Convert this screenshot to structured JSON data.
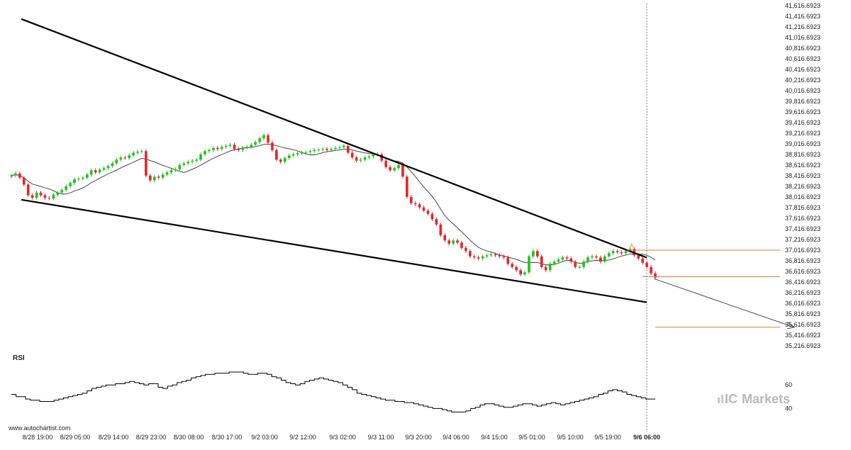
{
  "watermark": "www.autochartist.com",
  "brand": {
    "prefix": "IC",
    "name": "Markets"
  },
  "rsi_label": "RSI",
  "colors": {
    "up": "#21c21b",
    "down": "#e3262b",
    "line": "#000000",
    "level": "#e07b3c",
    "ma": "#333333"
  },
  "chart_data": [
    {
      "type": "candlestick",
      "title": "",
      "xlabel": "",
      "ylabel": "",
      "y_ticks": [
        "41,616.6923",
        "41,416.6923",
        "41,216.6923",
        "41,016.6923",
        "40,816.6923",
        "40,616.6923",
        "40,416.6923",
        "40,216.6923",
        "40,016.6923",
        "39,816.6923",
        "39,616.6923",
        "39,416.6923",
        "39,216.6923",
        "39,016.6923",
        "38,816.6923",
        "38,616.6923",
        "38,416.6923",
        "38,216.6923",
        "38,016.6923",
        "37,816.6923",
        "37,616.6923",
        "37,416.6923",
        "37,216.6923",
        "37,016.6923",
        "36,816.6923",
        "36,616.6923",
        "36,416.6923",
        "36,216.6923",
        "36,016.6923",
        "35,816.6923",
        "35,616.6923",
        "35,416.6923",
        "35,216.6923"
      ],
      "ylim": [
        35216.6923,
        41616.6923
      ],
      "x_ticks": [
        "8/28 19:00",
        "8/29 05:00",
        "8/29 14:00",
        "8/29 23:00",
        "8/30 08:00",
        "8/30 17:00",
        "9/2 03:00",
        "9/2 12:00",
        "9/3 02:00",
        "9/3 11:00",
        "9/3 20:00",
        "9/4 06:00",
        "9/4 15:00",
        "9/5 01:00",
        "9/5 10:00",
        "9/5 19:00",
        "9/6 06:00"
      ],
      "current_x": "9/6 06:00",
      "close": [
        38420,
        38460,
        38380,
        38250,
        38050,
        38000,
        38100,
        38050,
        38000,
        37990,
        38060,
        38100,
        38150,
        38220,
        38280,
        38350,
        38360,
        38380,
        38440,
        38520,
        38480,
        38530,
        38560,
        38600,
        38650,
        38720,
        38760,
        38750,
        38800,
        38850,
        38870,
        38880,
        38420,
        38330,
        38400,
        38380,
        38440,
        38480,
        38520,
        38540,
        38620,
        38650,
        38680,
        38700,
        38720,
        38820,
        38880,
        38900,
        38940,
        38920,
        38960,
        38980,
        39000,
        38920,
        38900,
        38950,
        38960,
        39000,
        39050,
        39120,
        39180,
        39040,
        38900,
        38720,
        38680,
        38750,
        38800,
        38820,
        38840,
        38850,
        38860,
        38880,
        38900,
        38910,
        38920,
        38900,
        38920,
        38940,
        38950,
        38980,
        38850,
        38760,
        38700,
        38720,
        38760,
        38780,
        38820,
        38820,
        38700,
        38580,
        38520,
        38560,
        38620,
        38400,
        38020,
        37900,
        37880,
        37820,
        37760,
        37700,
        37600,
        37500,
        37300,
        37200,
        37140,
        37200,
        37160,
        37060,
        37000,
        36900,
        36880,
        36860,
        36900,
        36920,
        36940,
        36920,
        36900,
        36880,
        36760,
        36700,
        36640,
        36560,
        36600,
        36900,
        37000,
        36900,
        36700,
        36640,
        36760,
        36800,
        36840,
        36880,
        36860,
        36800,
        36700,
        36700,
        36800,
        36880,
        36900,
        36880,
        36800,
        36900,
        36960,
        37000,
        36980,
        36960,
        37000,
        37040,
        36920,
        36860,
        36780,
        36700,
        36580,
        36500
      ],
      "rsi": {
        "ylim": [
          30,
          80
        ],
        "ticks": [
          "60",
          "40"
        ],
        "values": [
          52,
          50,
          50,
          48,
          47,
          47,
          46,
          46,
          46,
          47,
          48,
          49,
          50,
          51,
          52,
          53,
          55,
          57,
          58,
          59,
          60,
          60,
          61,
          61,
          62,
          63,
          62,
          61,
          60,
          61,
          61,
          58,
          57,
          59,
          60,
          62,
          63,
          64,
          66,
          67,
          68,
          69,
          69,
          70,
          70,
          70,
          71,
          71,
          71,
          70,
          69,
          69,
          70,
          70,
          69,
          67,
          66,
          64,
          62,
          61,
          60,
          61,
          63,
          64,
          65,
          66,
          65,
          64,
          63,
          62,
          60,
          58,
          56,
          53,
          52,
          51,
          50,
          49,
          48,
          47,
          47,
          46,
          46,
          45,
          45,
          44,
          43,
          42,
          41,
          40,
          40,
          39,
          38,
          37,
          37,
          37,
          38,
          40,
          41,
          43,
          44,
          44,
          43,
          42,
          41,
          41,
          42,
          43,
          44,
          44,
          43,
          42,
          43,
          44,
          45,
          44,
          43,
          44,
          45,
          46,
          47,
          48,
          49,
          50,
          52,
          53,
          55,
          56,
          55,
          54,
          52,
          51,
          50,
          49,
          48,
          48,
          48
        ]
      },
      "pattern": {
        "name": "Falling Wedge",
        "point_label": "A"
      },
      "levels": [
        "37,016.6923",
        "36,516.6923",
        "35,566.6923"
      ]
    }
  ]
}
